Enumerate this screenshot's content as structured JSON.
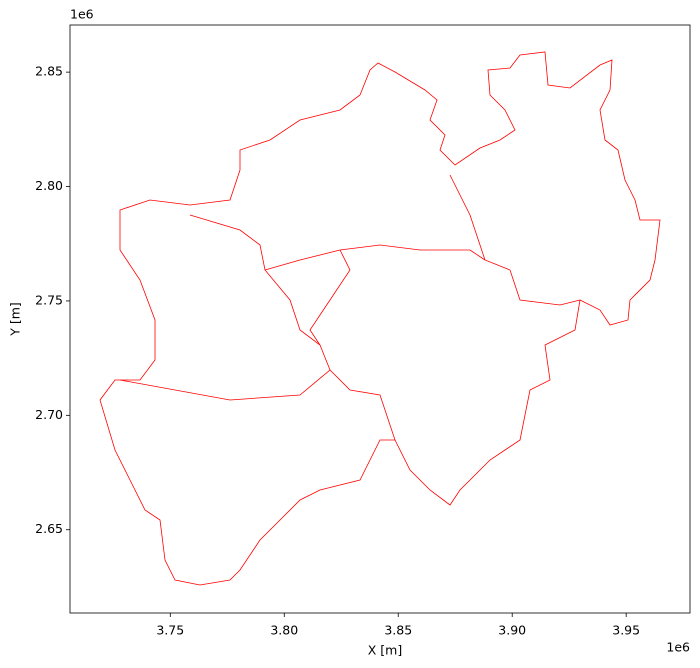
{
  "chart_data": {
    "type": "map",
    "xlabel": "X [m]",
    "ylabel": "Y [m]",
    "x_offset": "1e6",
    "y_offset": "1e6",
    "xlim": [
      3706000,
      3978000
    ],
    "ylim": [
      2613600,
      2870600
    ],
    "xticks": [
      {
        "value": 3750000,
        "label": "3.75"
      },
      {
        "value": 3800000,
        "label": "3.80"
      },
      {
        "value": 3850000,
        "label": "3.85"
      },
      {
        "value": 3900000,
        "label": "3.90"
      },
      {
        "value": 3950000,
        "label": "3.95"
      }
    ],
    "yticks": [
      {
        "value": 2650000,
        "label": "2.65"
      },
      {
        "value": 2700000,
        "label": "2.70"
      },
      {
        "value": 2750000,
        "label": "2.75"
      },
      {
        "value": 2800000,
        "label": "2.80"
      },
      {
        "value": 2850000,
        "label": "2.85"
      }
    ],
    "boundary_color": "#ff0000"
  }
}
